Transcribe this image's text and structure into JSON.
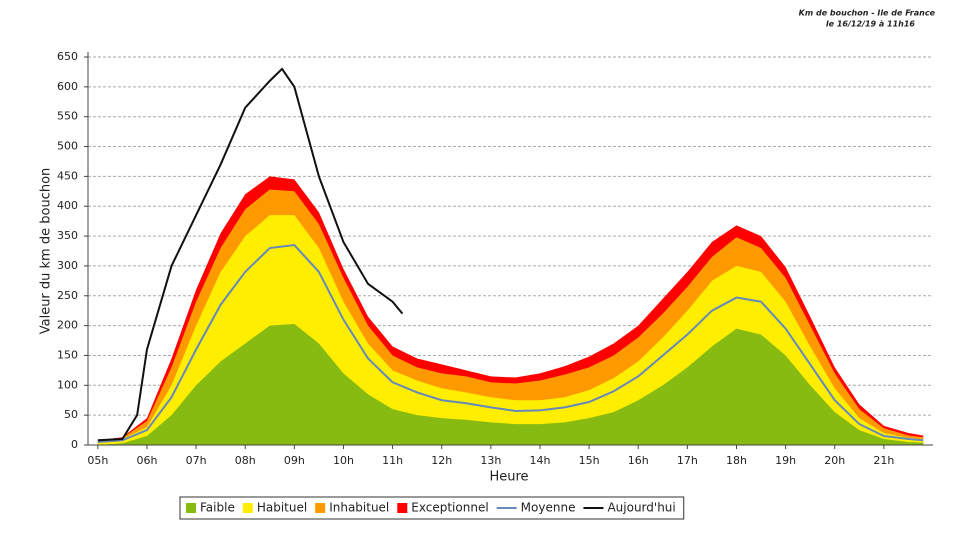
{
  "chart_data": {
    "type": "area",
    "title": "Km de bouchon - Ile de France",
    "subtitle": "le 16/12/19 à 11h16",
    "x_label": "Heure",
    "y_label": "Valeur du  km de bouchon",
    "x": [
      5,
      5.5,
      6,
      6.5,
      7,
      7.5,
      8,
      8.5,
      9,
      9.5,
      10,
      10.5,
      11,
      11.5,
      12,
      12.5,
      13,
      13.5,
      14,
      14.5,
      15,
      15.5,
      16,
      16.5,
      17,
      17.5,
      18,
      18.5,
      19,
      19.5,
      20,
      20.5,
      21,
      21.5,
      21.8
    ],
    "series": [
      {
        "name": "Exceptionnel",
        "kind": "area",
        "color": "#ff0000",
        "values": [
          8,
          13,
          45,
          145,
          260,
          355,
          420,
          450,
          445,
          390,
          295,
          215,
          165,
          145,
          135,
          125,
          115,
          113,
          120,
          132,
          148,
          170,
          200,
          245,
          290,
          340,
          368,
          350,
          298,
          215,
          130,
          68,
          32,
          20,
          16
        ]
      },
      {
        "name": "Inhabituel",
        "kind": "area",
        "color": "#ff9900",
        "values": [
          7,
          12,
          40,
          130,
          240,
          330,
          395,
          428,
          425,
          370,
          280,
          200,
          150,
          130,
          120,
          115,
          105,
          103,
          108,
          118,
          130,
          150,
          180,
          220,
          265,
          315,
          348,
          330,
          280,
          200,
          120,
          60,
          28,
          16,
          13
        ]
      },
      {
        "name": "Habituel",
        "kind": "area",
        "color": "#ffee00",
        "values": [
          6,
          10,
          30,
          100,
          200,
          290,
          350,
          385,
          385,
          330,
          240,
          170,
          125,
          108,
          95,
          88,
          80,
          75,
          75,
          80,
          92,
          112,
          140,
          180,
          225,
          275,
          300,
          290,
          240,
          165,
          95,
          45,
          20,
          12,
          10
        ]
      },
      {
        "name": "Faible",
        "kind": "area",
        "color": "#88bb11",
        "values": [
          0,
          3,
          15,
          50,
          100,
          140,
          170,
          200,
          203,
          170,
          120,
          85,
          60,
          50,
          45,
          42,
          38,
          35,
          35,
          38,
          45,
          55,
          75,
          100,
          130,
          165,
          195,
          185,
          150,
          100,
          55,
          25,
          10,
          5,
          4
        ]
      },
      {
        "name": "Moyenne",
        "kind": "line",
        "color": "#6688bb",
        "values": [
          5,
          8,
          25,
          80,
          160,
          235,
          290,
          330,
          335,
          290,
          210,
          145,
          105,
          88,
          75,
          70,
          63,
          57,
          58,
          63,
          72,
          90,
          115,
          150,
          185,
          225,
          247,
          240,
          195,
          135,
          75,
          35,
          15,
          10,
          8
        ]
      },
      {
        "name": "Aujourd'hui",
        "kind": "line",
        "color": "#111111",
        "x": [
          5,
          5.5,
          5.8,
          6,
          6.5,
          7,
          7.5,
          8,
          8.5,
          8.75,
          9,
          9.5,
          10,
          10.5,
          11,
          11.2
        ],
        "values": [
          8,
          10,
          50,
          160,
          300,
          385,
          470,
          565,
          610,
          630,
          600,
          450,
          340,
          270,
          240,
          220
        ]
      }
    ],
    "legend_order": [
      "Faible",
      "Habituel",
      "Inhabituel",
      "Exceptionnel",
      "Moyenne",
      "Aujourd'hui"
    ],
    "xlim": [
      4.8,
      22.0
    ],
    "xticks": [
      {
        "value": 5,
        "label": "05h"
      },
      {
        "value": 6,
        "label": "06h"
      },
      {
        "value": 7,
        "label": "07h"
      },
      {
        "value": 8,
        "label": "08h"
      },
      {
        "value": 9,
        "label": "09h"
      },
      {
        "value": 10,
        "label": "10h"
      },
      {
        "value": 11,
        "label": "11h"
      },
      {
        "value": 12,
        "label": "12h"
      },
      {
        "value": 13,
        "label": "13h"
      },
      {
        "value": 14,
        "label": "14h"
      },
      {
        "value": 15,
        "label": "15h"
      },
      {
        "value": 16,
        "label": "16h"
      },
      {
        "value": 17,
        "label": "17h"
      },
      {
        "value": 18,
        "label": "18h"
      },
      {
        "value": 19,
        "label": "19h"
      },
      {
        "value": 20,
        "label": "20h"
      },
      {
        "value": 21,
        "label": "21h"
      }
    ],
    "ylim": [
      0,
      650
    ],
    "yticks": [
      0,
      50,
      100,
      150,
      200,
      250,
      300,
      350,
      400,
      450,
      500,
      550,
      600,
      650
    ],
    "grid": true
  }
}
